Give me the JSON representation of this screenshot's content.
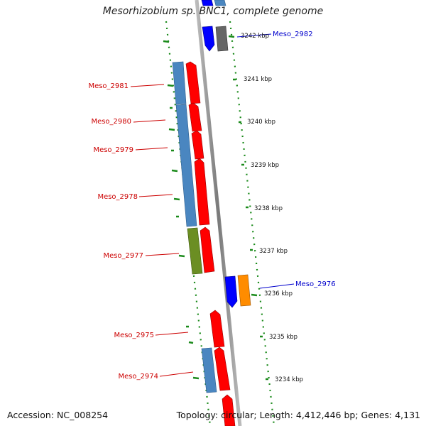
{
  "title": "Mesorhizobium sp. BNC1, complete genome",
  "footer": {
    "accession": "Accession: NC_008254",
    "topology": "Topology: circular; Length: 4,412,446 bp; Genes: 4,131"
  },
  "ticks": [
    "3242 kbp",
    "3241 kbp",
    "3240 kbp",
    "3239 kbp",
    "3238 kbp",
    "3237 kbp",
    "3236 kbp",
    "3235 kbp",
    "3234 kbp"
  ],
  "gene_labels": [
    "Meso_2982",
    "Meso_2981",
    "Meso_2980",
    "Meso_2979",
    "Meso_2978",
    "Meso_2977",
    "Meso_2976",
    "Meso_2975",
    "Meso_2974"
  ],
  "colors": {
    "backbone": "#8a8a8a",
    "cds_red": "#ff0000",
    "cds_blue": "#0000ff",
    "cds_steel": "#4a86c0",
    "cds_olive": "#6b8e23",
    "cds_orange": "#ff8c00",
    "cds_gray": "#666666",
    "gc_dots": "#1a8a1a",
    "label_red": "#cc0000",
    "label_blue": "#0000cc"
  }
}
